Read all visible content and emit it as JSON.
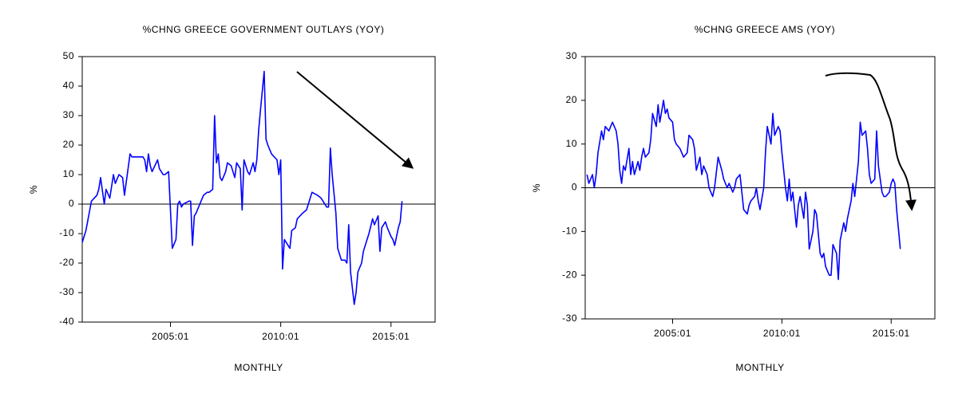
{
  "chart_data": [
    {
      "type": "line",
      "title": "%CHNG GREECE GOVERNMENT OUTLAYS (YOY)",
      "xlabel": "MONTHLY",
      "ylabel": "%",
      "xlim": [
        "2001:01",
        "2017:01"
      ],
      "xticks": [
        "2005:01",
        "2010:01",
        "2015:01"
      ],
      "ylim": [
        -40,
        50
      ],
      "yticks": [
        -40,
        -30,
        -20,
        -10,
        0,
        10,
        20,
        30,
        40,
        50
      ],
      "x": [
        "2001:01",
        "2001:03",
        "2001:06",
        "2001:09",
        "2001:10",
        "2001:11",
        "2002:01",
        "2002:02",
        "2002:04",
        "2002:06",
        "2002:07",
        "2002:09",
        "2002:11",
        "2002:12",
        "2003:03",
        "2003:04",
        "2003:10",
        "2003:11",
        "2003:12",
        "2004:01",
        "2004:02",
        "2004:03",
        "2004:06",
        "2004:07",
        "2004:09",
        "2004:10",
        "2004:12",
        "2005:02",
        "2005:04",
        "2005:05",
        "2005:06",
        "2005:07",
        "2005:08",
        "2005:11",
        "2005:12",
        "2006:01",
        "2006:02",
        "2006:03",
        "2006:05",
        "2006:07",
        "2006:09",
        "2006:10",
        "2006:12",
        "2007:01",
        "2007:02",
        "2007:03",
        "2007:04",
        "2007:05",
        "2007:07",
        "2007:08",
        "2007:10",
        "2007:12",
        "2008:01",
        "2008:03",
        "2008:04",
        "2008:05",
        "2008:07",
        "2008:08",
        "2008:10",
        "2008:11",
        "2008:12",
        "2009:01",
        "2009:02",
        "2009:04",
        "2009:05",
        "2009:06",
        "2009:08",
        "2009:11",
        "2009:12",
        "2010:01",
        "2010:02",
        "2010:03",
        "2010:04",
        "2010:06",
        "2010:07",
        "2010:09",
        "2010:10",
        "2011:01",
        "2011:03",
        "2011:04",
        "2011:06",
        "2011:09",
        "2011:11",
        "2012:01",
        "2012:02",
        "2012:03",
        "2012:04",
        "2012:05",
        "2012:07",
        "2012:08",
        "2012:10",
        "2012:12",
        "2013:01",
        "2013:02",
        "2013:03",
        "2013:05",
        "2013:06",
        "2013:07",
        "2013:09",
        "2013:10",
        "2013:12",
        "2014:01",
        "2014:03",
        "2014:04",
        "2014:06",
        "2014:07",
        "2014:08",
        "2014:10",
        "2014:11",
        "2015:01",
        "2015:02",
        "2015:03",
        "2015:05",
        "2015:06",
        "2015:07"
      ],
      "series": [
        {
          "name": "GOVERNMENT OUTLAYS",
          "color": "#0000ff",
          "values": [
            -13,
            -9,
            1,
            3,
            5,
            9,
            0,
            5,
            2,
            10,
            7,
            10,
            9,
            3,
            17,
            16,
            16,
            15,
            11,
            17,
            13,
            11,
            15,
            12,
            10,
            10,
            11,
            -15,
            -12,
            0,
            1,
            -1,
            0,
            1,
            1,
            -14,
            -4,
            -3,
            0,
            3,
            4,
            4,
            5,
            30,
            14,
            17,
            9,
            8,
            11,
            14,
            13,
            9,
            14,
            12,
            -2,
            15,
            11,
            10,
            14,
            11,
            15,
            25,
            32,
            45,
            22,
            20,
            17,
            15,
            10,
            15,
            -22,
            -12,
            -13,
            -15,
            -9,
            -8,
            -5,
            -3,
            -2,
            0,
            4,
            3,
            2,
            0,
            -1,
            -1,
            19,
            10,
            -3,
            -15,
            -19,
            -19,
            -20,
            -7,
            -23,
            -34,
            -30,
            -23,
            -20,
            -16,
            -12,
            -10,
            -5,
            -7,
            -4,
            -16,
            -8,
            -6,
            -8,
            -11,
            -12,
            -14,
            -8,
            -6,
            1
          ]
        }
      ]
    },
    {
      "type": "line",
      "title": "%CHNG GREECE AMS (YOY)",
      "xlabel": "MONTHLY",
      "ylabel": "%",
      "xlim": [
        "2001:01",
        "2017:01"
      ],
      "xticks": [
        "2005:01",
        "2010:01",
        "2015:01"
      ],
      "ylim": [
        -30,
        30
      ],
      "yticks": [
        -30,
        -20,
        -10,
        0,
        10,
        20,
        30
      ],
      "x": [
        "2001:02",
        "2001:03",
        "2001:05",
        "2001:06",
        "2001:07",
        "2001:08",
        "2001:10",
        "2001:11",
        "2001:12",
        "2002:02",
        "2002:03",
        "2002:04",
        "2002:06",
        "2002:07",
        "2002:08",
        "2002:09",
        "2002:10",
        "2002:11",
        "2003:01",
        "2003:02",
        "2003:03",
        "2003:04",
        "2003:06",
        "2003:07",
        "2003:08",
        "2003:09",
        "2003:10",
        "2003:12",
        "2004:01",
        "2004:02",
        "2004:04",
        "2004:05",
        "2004:06",
        "2004:08",
        "2004:09",
        "2004:10",
        "2004:11",
        "2005:01",
        "2005:02",
        "2005:03",
        "2005:05",
        "2005:06",
        "2005:07",
        "2005:09",
        "2005:10",
        "2005:12",
        "2006:01",
        "2006:02",
        "2006:04",
        "2006:05",
        "2006:06",
        "2006:08",
        "2006:09",
        "2006:11",
        "2006:12",
        "2007:02",
        "2007:04",
        "2007:05",
        "2007:07",
        "2007:08",
        "2007:10",
        "2007:11",
        "2007:12",
        "2008:02",
        "2008:03",
        "2008:04",
        "2008:06",
        "2008:07",
        "2008:08",
        "2008:10",
        "2008:11",
        "2008:12",
        "2009:01",
        "2009:03",
        "2009:04",
        "2009:05",
        "2009:07",
        "2009:08",
        "2009:09",
        "2009:11",
        "2009:12",
        "2010:01",
        "2010:03",
        "2010:04",
        "2010:05",
        "2010:06",
        "2010:07",
        "2010:09",
        "2010:10",
        "2010:11",
        "2011:01",
        "2011:02",
        "2011:03",
        "2011:04",
        "2011:06",
        "2011:07",
        "2011:08",
        "2011:10",
        "2011:11",
        "2011:12",
        "2012:01",
        "2012:03",
        "2012:04",
        "2012:05",
        "2012:07",
        "2012:08",
        "2012:09",
        "2012:11",
        "2012:12",
        "2013:01",
        "2013:03",
        "2013:04",
        "2013:05",
        "2013:07",
        "2013:08",
        "2013:09",
        "2013:11",
        "2013:12",
        "2014:01",
        "2014:02",
        "2014:04",
        "2014:05",
        "2014:06",
        "2014:08",
        "2014:09",
        "2014:10",
        "2014:12",
        "2015:01",
        "2015:02",
        "2015:03",
        "2015:04",
        "2015:06"
      ],
      "series": [
        {
          "name": "AMS",
          "color": "#0000ff",
          "values": [
            3,
            1,
            3,
            0,
            3,
            8,
            13,
            11,
            14,
            13,
            14,
            15,
            13,
            10,
            4,
            1,
            5,
            4,
            9,
            3,
            6,
            3,
            6,
            4,
            7,
            9,
            7,
            8,
            11,
            17,
            14,
            19,
            15,
            20,
            17,
            18,
            16,
            15,
            11,
            10,
            9,
            8,
            7,
            8,
            12,
            11,
            9,
            4,
            7,
            3,
            5,
            3,
            0,
            -2,
            0,
            7,
            4,
            2,
            0,
            1,
            -1,
            0,
            2,
            3,
            -1,
            -5,
            -6,
            -4,
            -3,
            -2,
            0,
            -3,
            -5,
            0,
            8,
            14,
            10,
            17,
            12,
            14,
            13,
            8,
            0,
            -3,
            2,
            -3,
            -1,
            -9,
            -4,
            -2,
            -7,
            -1,
            -4,
            -14,
            -10,
            -5,
            -6,
            -15,
            -16,
            -15,
            -18,
            -20,
            -20,
            -13,
            -15,
            -21,
            -12,
            -8,
            -10,
            -7,
            -3,
            1,
            -2,
            6,
            15,
            12,
            13,
            9,
            3,
            1,
            2,
            13,
            5,
            -1,
            -2,
            -2,
            -1,
            1,
            2,
            1,
            -5,
            -14
          ]
        }
      ]
    }
  ]
}
